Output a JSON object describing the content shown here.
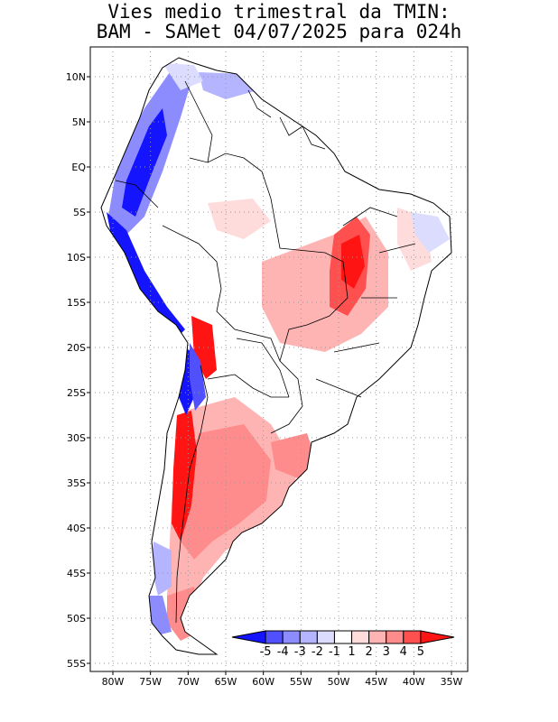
{
  "title": {
    "line1": "Vies medio trimestral da TMIN:",
    "line2": "BAM - SAMet 04/07/2025  para 024h"
  },
  "axes": {
    "lat_labels": [
      "10N",
      "5N",
      "EQ",
      "5S",
      "10S",
      "15S",
      "20S",
      "25S",
      "30S",
      "35S",
      "40S",
      "45S",
      "50S",
      "55S"
    ],
    "lon_labels": [
      "80W",
      "75W",
      "70W",
      "65W",
      "60W",
      "55W",
      "50W",
      "45W",
      "40W",
      "35W"
    ]
  },
  "colorbar": {
    "labels": [
      "-5",
      "-4",
      "-3",
      "-2",
      "-1",
      "1",
      "2",
      "3",
      "4",
      "5"
    ],
    "colors": [
      "#1414ff",
      "#5050ff",
      "#8c8cff",
      "#b4b4ff",
      "#dcdcff",
      "#ffffff",
      "#ffdcdc",
      "#ffb4b4",
      "#ff8c8c",
      "#ff5050",
      "#ff1414"
    ]
  },
  "colors": {
    "blue_strong": "#1414ff",
    "blue_mid": "#8c8cff",
    "blue_light": "#dcdcff",
    "red_strong": "#ff1414",
    "red_mid": "#ff5050",
    "red_light": "#ffdcdc",
    "coast": "#000000",
    "grid": "#999999"
  }
}
